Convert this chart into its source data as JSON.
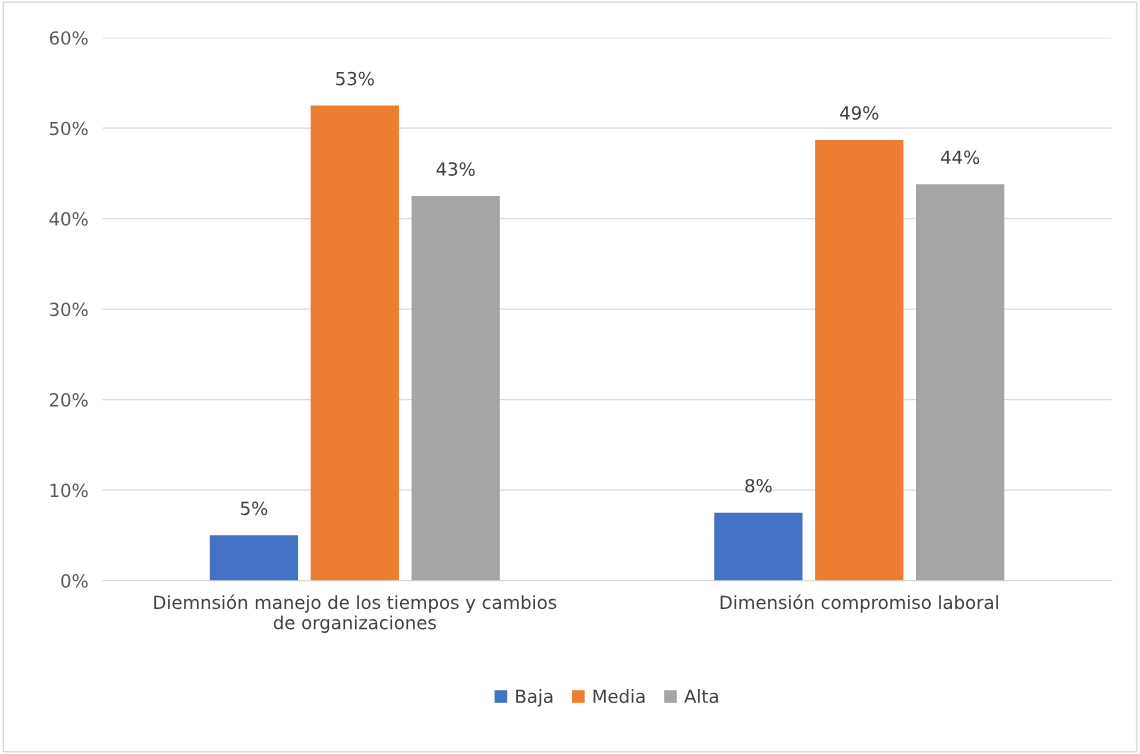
{
  "chart_data": {
    "type": "bar",
    "categories": [
      "Diemnsión manejo de los tiempos y cambios\nde organizaciones",
      "Dimensión compromiso laboral"
    ],
    "series": [
      {
        "name": "Baja",
        "color": "#4472c4",
        "values": [
          5,
          7.5
        ],
        "value_labels": [
          "5%",
          "8%"
        ]
      },
      {
        "name": "Media",
        "color": "#ed7d31",
        "values": [
          52.5,
          48.7
        ],
        "value_labels": [
          "53%",
          "49%"
        ]
      },
      {
        "name": "Alta",
        "color": "#a5a5a5",
        "values": [
          42.5,
          43.8
        ],
        "value_labels": [
          "43%",
          "44%"
        ]
      }
    ],
    "ylim": [
      0,
      60
    ],
    "yticks": [
      {
        "value": 0,
        "label": "0%"
      },
      {
        "value": 10,
        "label": "10%"
      },
      {
        "value": 20,
        "label": "20%"
      },
      {
        "value": 30,
        "label": "30%"
      },
      {
        "value": 40,
        "label": "40%"
      },
      {
        "value": 50,
        "label": "50%"
      },
      {
        "value": 60,
        "label": "60%"
      }
    ],
    "grid": "y",
    "legend": "bottom"
  }
}
